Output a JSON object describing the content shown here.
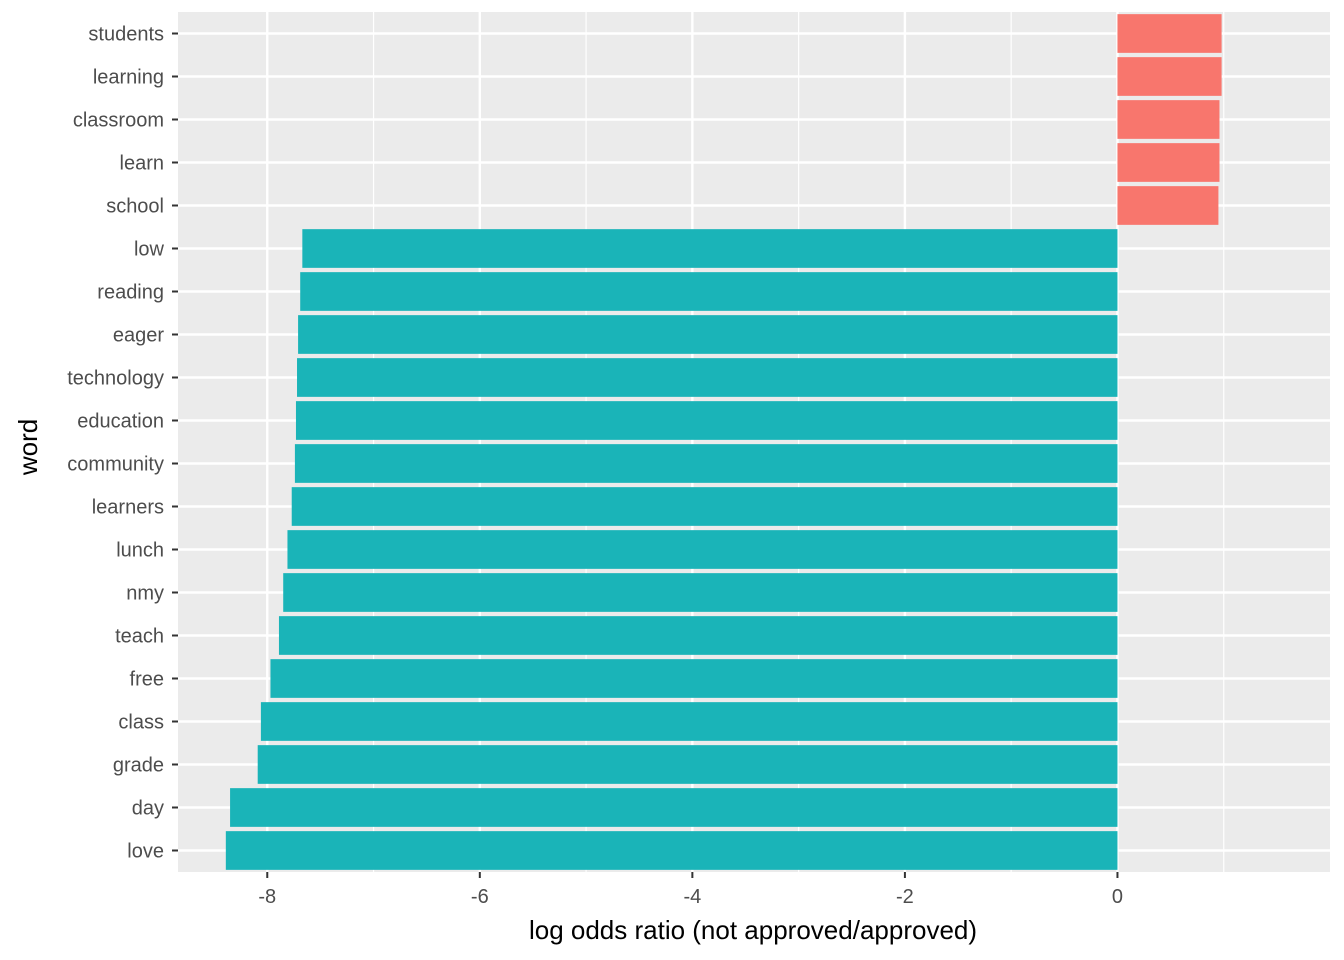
{
  "chart_data": {
    "type": "bar",
    "orientation": "horizontal",
    "xlabel": "log odds ratio (not approved/approved)",
    "ylabel": "word",
    "xlim": [
      -8.84,
      2.0
    ],
    "xticks": [
      -8,
      -6,
      -4,
      -2,
      0
    ],
    "grid": true,
    "legend": "none",
    "colors": {
      "positive": "#F8766D",
      "negative": "#1AB4B8",
      "panel": "#EBEBEB",
      "grid": "#FFFFFF"
    },
    "categories": [
      "students",
      "learning",
      "classroom",
      "learn",
      "school",
      "low",
      "reading",
      "eager",
      "technology",
      "education",
      "community",
      "learners",
      "lunch",
      "nmy",
      "teach",
      "free",
      "class",
      "grade",
      "day",
      "love"
    ],
    "values": [
      0.98,
      0.98,
      0.96,
      0.96,
      0.95,
      -7.67,
      -7.69,
      -7.71,
      -7.72,
      -7.73,
      -7.74,
      -7.77,
      -7.81,
      -7.85,
      -7.89,
      -7.97,
      -8.06,
      -8.09,
      -8.35,
      -8.39
    ]
  }
}
